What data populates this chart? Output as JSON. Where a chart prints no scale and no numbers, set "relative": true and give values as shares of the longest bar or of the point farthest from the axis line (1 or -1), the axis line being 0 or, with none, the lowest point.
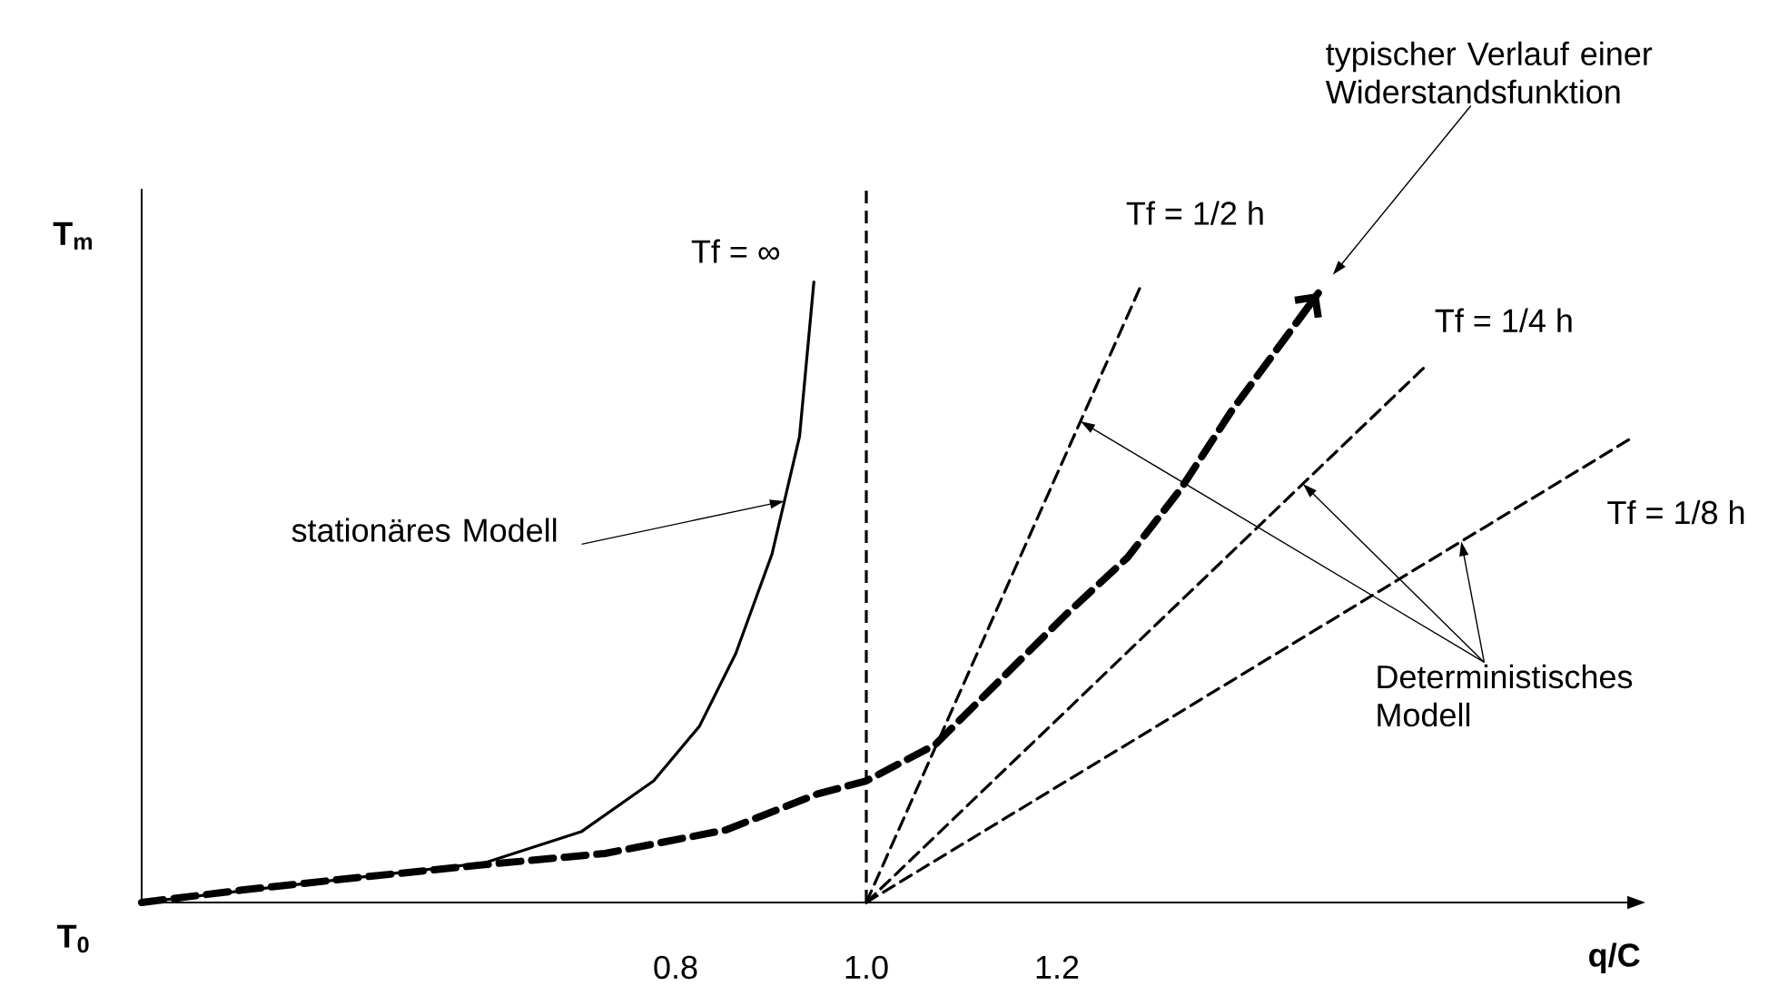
{
  "chart_data": {
    "type": "line",
    "relative": true,
    "xlabel": "q/C",
    "ylabel": "T$_{m}$",
    "xlim": [
      0.24,
      1.8
    ],
    "xticks": [
      0.8,
      {
        "value": 1.0,
        "label": "1.0"
      },
      1.2
    ],
    "series": [
      {
        "name": "Tf = ∞",
        "color": "#000000",
        "line_style": "solid",
        "x": [
          0.24,
          0.6,
          0.701,
          0.777,
          0.825,
          0.863,
          0.901,
          0.93,
          0.945
        ],
        "values": [
          0,
          0.064,
          0.114,
          0.196,
          0.284,
          0.401,
          0.561,
          0.751,
          1.0
        ]
      },
      {
        "name": "Tf = 1/2 h",
        "color": "#000000",
        "line_style": "dashed",
        "x": [
          1.0,
          1.288
        ],
        "values": [
          0,
          0.994
        ]
      },
      {
        "name": "Tf = 1/4 h",
        "color": "#000000",
        "line_style": "dashed",
        "x": [
          1.0,
          1.587
        ],
        "values": [
          0,
          0.865
        ]
      },
      {
        "name": "Tf = 1/8 h",
        "color": "#000000",
        "line_style": "dashed",
        "x": [
          1.0,
          1.8
        ],
        "values": [
          0,
          0.746
        ]
      },
      {
        "color": "#000000",
        "line_style": "dashed",
        "x": [
          0.24,
          0.345,
          0.472,
          0.6,
          0.726,
          0.853,
          0.949,
          1.0,
          1.072,
          1.208,
          1.274,
          1.33,
          1.383,
          1.474
        ],
        "values": [
          0,
          0.02,
          0.041,
          0.061,
          0.079,
          0.117,
          0.175,
          0.196,
          0.254,
          0.462,
          0.556,
          0.667,
          0.792,
          0.982
        ]
      }
    ],
    "ref_lines": [
      {
        "axis": "x",
        "value": 1.0,
        "line_style": "dashed"
      }
    ],
    "annotations": [
      "typischer Verlauf einer Widerstandsfunktion",
      "stationäres Modell",
      "Deterministisches Modell",
      "T$_{0}$"
    ]
  }
}
